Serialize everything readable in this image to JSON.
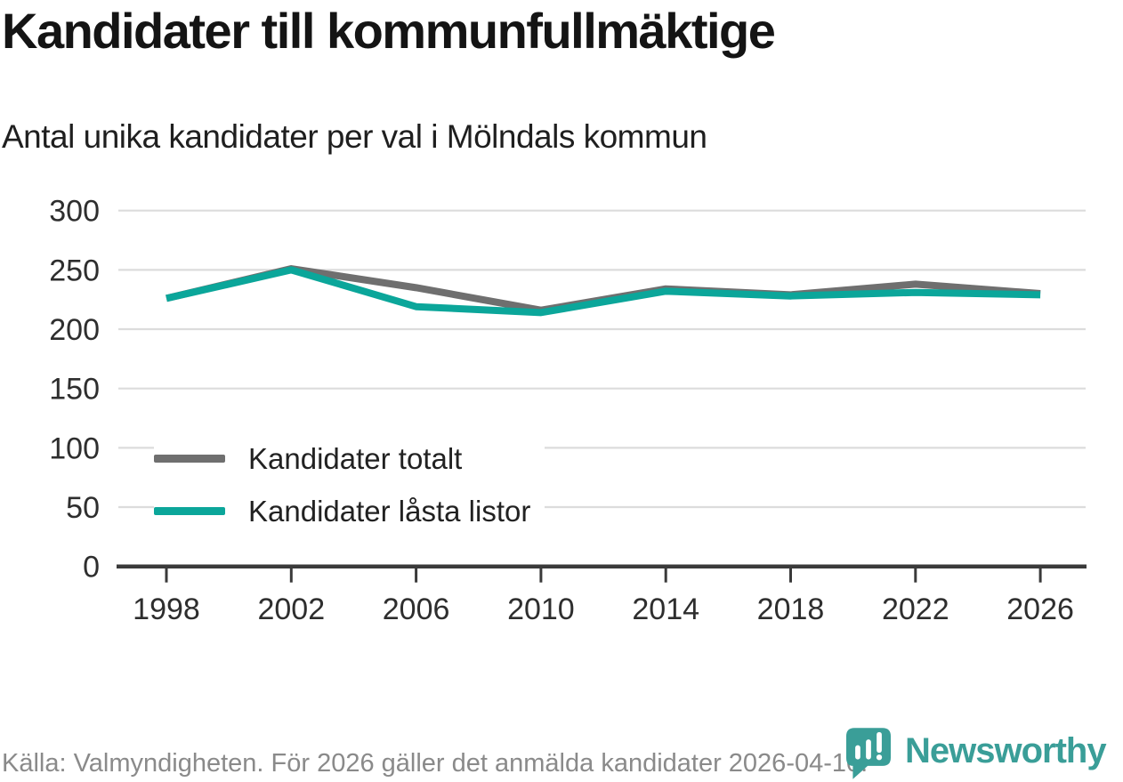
{
  "chart_data": {
    "type": "line",
    "title": "Kandidater till kommunfullmäktige",
    "subtitle": "Antal unika kandidater per val i Mölndals kommun",
    "xlabel": "",
    "ylabel": "",
    "categories": [
      1998,
      2002,
      2006,
      2010,
      2014,
      2018,
      2022,
      2026
    ],
    "series": [
      {
        "name": "Kandidater totalt",
        "color": "#6f6f6f",
        "values": [
          226,
          251,
          235,
          216,
          234,
          229,
          238,
          230
        ]
      },
      {
        "name": "Kandidater låsta listor",
        "color": "#0ba69a",
        "values": [
          226,
          250,
          219,
          214,
          232,
          228,
          231,
          229
        ]
      }
    ],
    "ylim": [
      0,
      300
    ],
    "yticks": [
      0,
      50,
      100,
      150,
      200,
      250,
      300
    ],
    "grid": true,
    "legend_position": "inside-left-middle"
  },
  "footer": {
    "source": "Källa: Valmyndigheten. För 2026 gäller det anmälda kandidater 2026-04-10."
  },
  "logo": {
    "text": "Newsworthy",
    "icon": "newsworthy-pin-chart-icon",
    "color": "#3a9e98"
  },
  "colors": {
    "axis": "#3a3a3a",
    "grid": "#dcdcdc",
    "tick_text": "#2e2e2e",
    "background": "#ffffff"
  }
}
